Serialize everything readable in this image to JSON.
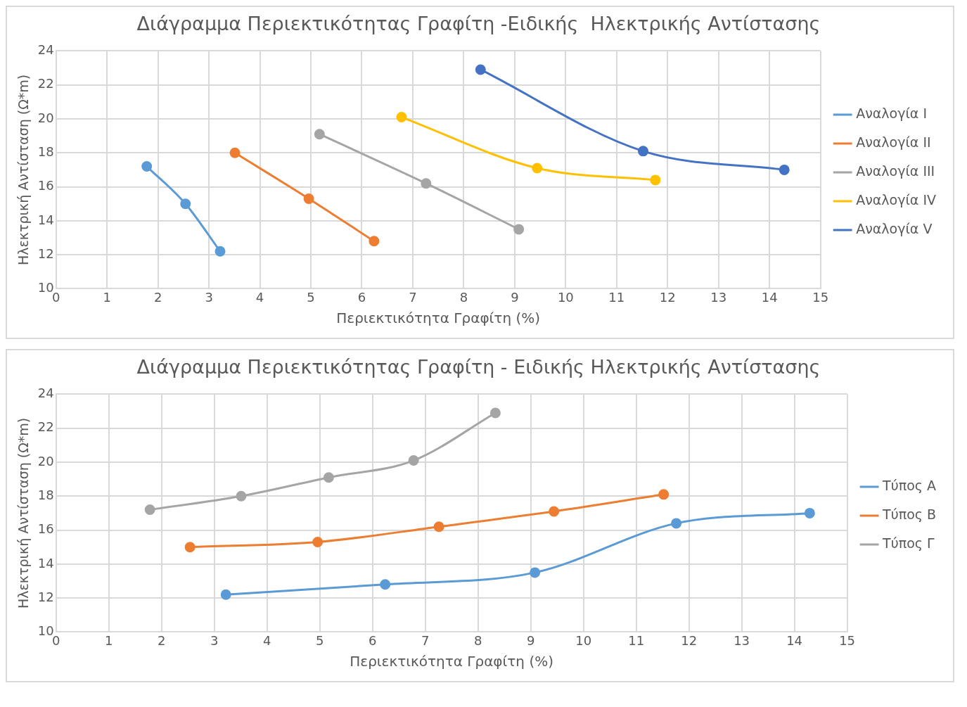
{
  "chart_data": [
    {
      "type": "line",
      "title": "Διάγραμμα Περιεκτικότητας Γραφίτη -Ειδικής  Ηλεκτρικής Αντίστασης",
      "xlabel": "Περιεκτικότητα Γραφίτη (%)",
      "ylabel": "Ηλεκτρική Αντίσταση (Ω*m)",
      "xlim": [
        0,
        15
      ],
      "xticks": [
        0,
        1,
        2,
        3,
        4,
        5,
        6,
        7,
        8,
        9,
        10,
        11,
        12,
        13,
        14,
        15
      ],
      "ylim": [
        10,
        24
      ],
      "yticks": [
        10,
        12,
        14,
        16,
        18,
        20,
        22,
        24
      ],
      "grid": true,
      "legend": "right",
      "marker": "circle",
      "line_style": "solid",
      "series": [
        {
          "name": "Αναλογία I",
          "color": "#5b9bd5",
          "x": [
            1.78,
            2.54,
            3.22
          ],
          "values": [
            17.2,
            15.0,
            12.2
          ]
        },
        {
          "name": "Αναλογία II",
          "color": "#ed7d31",
          "x": [
            3.51,
            4.96,
            6.24
          ],
          "values": [
            18.0,
            15.3,
            12.8
          ]
        },
        {
          "name": "Αναλογία III",
          "color": "#a5a5a5",
          "x": [
            5.17,
            7.26,
            9.08
          ],
          "values": [
            19.1,
            16.2,
            13.5
          ]
        },
        {
          "name": "Αναλογία IV",
          "color": "#ffc000",
          "x": [
            6.78,
            9.44,
            11.76
          ],
          "values": [
            20.1,
            17.1,
            16.4
          ]
        },
        {
          "name": "Αναλογία V",
          "color": "#4472c4",
          "x": [
            8.33,
            11.52,
            14.29
          ],
          "values": [
            22.9,
            18.1,
            17.0
          ]
        }
      ]
    },
    {
      "type": "line",
      "title": "Διάγραμμα Περιεκτικότητας Γραφίτη - Ειδικής Ηλεκτρικής Αντίστασης",
      "xlabel": "Περιεκτικότητα Γραφίτη (%)",
      "ylabel": "Ηλεκτρική Αντίσταση (Ω*m)",
      "xlim": [
        0,
        15
      ],
      "xticks": [
        0,
        1,
        2,
        3,
        4,
        5,
        6,
        7,
        8,
        9,
        10,
        11,
        12,
        13,
        14,
        15
      ],
      "ylim": [
        10,
        24
      ],
      "yticks": [
        10,
        12,
        14,
        16,
        18,
        20,
        22,
        24
      ],
      "grid": true,
      "legend": "right",
      "marker": "circle",
      "line_style": "solid",
      "series": [
        {
          "name": "Τύπος A",
          "color": "#5b9bd5",
          "x": [
            3.22,
            6.24,
            9.08,
            11.76,
            14.29
          ],
          "values": [
            12.2,
            12.8,
            13.5,
            16.4,
            17.0
          ]
        },
        {
          "name": "Τύπος B",
          "color": "#ed7d31",
          "x": [
            2.54,
            4.96,
            7.26,
            9.44,
            11.52
          ],
          "values": [
            15.0,
            15.3,
            16.2,
            17.1,
            18.1
          ]
        },
        {
          "name": "Τύπος Γ",
          "color": "#a5a5a5",
          "x": [
            1.78,
            3.51,
            5.17,
            6.78,
            8.33
          ],
          "values": [
            17.2,
            18.0,
            19.1,
            20.1,
            22.9
          ]
        }
      ]
    }
  ]
}
